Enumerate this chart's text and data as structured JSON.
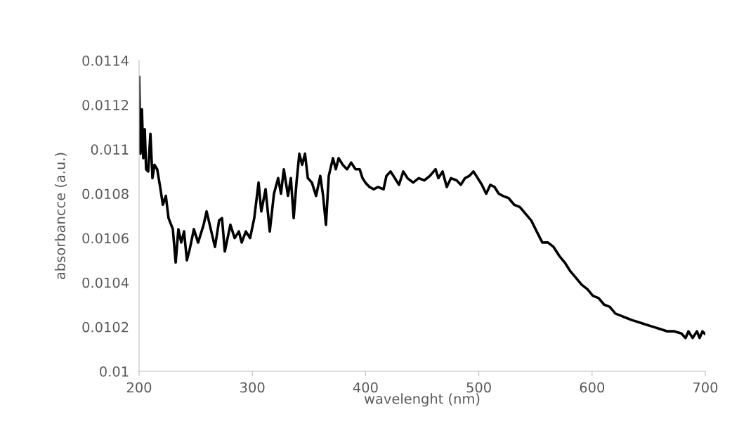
{
  "chart_data": {
    "type": "line",
    "xlabel": "wavelenght (nm)",
    "ylabel": "absorbancce (a.u.)",
    "xlim": [
      200,
      700
    ],
    "xticks": [
      200,
      300,
      400,
      500,
      600,
      700
    ],
    "ylim": [
      0.01,
      0.0114
    ],
    "yticks": [
      0.01,
      0.0102,
      0.0104,
      0.0106,
      0.0108,
      0.011,
      0.0112,
      0.0114
    ],
    "grid": false,
    "legend": false,
    "marker": "none",
    "line_style": "solid",
    "series": [
      {
        "color": "#000000",
        "x": [
          200,
          201.2,
          202.5,
          203.7,
          205,
          206.2,
          208,
          210,
          211.8,
          213.6,
          216,
          218.6,
          221,
          223.6,
          226,
          229.8,
          232.3,
          234.7,
          237.2,
          239.7,
          242.2,
          244.7,
          248.4,
          252.1,
          257,
          259.6,
          263.3,
          267,
          270.7,
          273.2,
          275.7,
          280.6,
          284.4,
          288.1,
          290.6,
          294.3,
          298,
          301.7,
          305.5,
          307.9,
          311.7,
          315.4,
          319.1,
          322.8,
          325.3,
          327.8,
          331.5,
          334,
          336.5,
          339,
          341.5,
          344,
          346.5,
          349,
          352.6,
          356.3,
          360,
          362.5,
          365,
          367.5,
          371.2,
          373.7,
          376.2,
          379.9,
          383.6,
          387.3,
          391.1,
          394.8,
          397.3,
          399.8,
          403.5,
          407.2,
          411,
          415.9,
          418.4,
          422.1,
          425.8,
          429.5,
          433.3,
          437,
          442,
          446.9,
          451.9,
          456.8,
          461.8,
          464.3,
          468,
          471.7,
          475.4,
          480.4,
          484.1,
          487.8,
          491.6,
          495.3,
          499,
          502.7,
          506.5,
          510.2,
          513.9,
          517.6,
          521.3,
          526.3,
          531.3,
          536.2,
          541.2,
          546.2,
          551.1,
          556.1,
          561,
          566,
          571,
          575.9,
          580.9,
          585.9,
          590.8,
          595.8,
          600.7,
          605.7,
          610.7,
          615.6,
          620.6,
          625.6,
          630.5,
          635.5,
          641.7,
          647.9,
          654.1,
          660.3,
          666.5,
          672.7,
          678.9,
          682.6,
          685.1,
          688.8,
          692.6,
          695,
          697.5,
          699.4
        ],
        "values": [
          0.011325,
          0.01098,
          0.01118,
          0.01096,
          0.01109,
          0.01091,
          0.0109,
          0.01107,
          0.01087,
          0.01093,
          0.01091,
          0.01083,
          0.01075,
          0.01079,
          0.01069,
          0.01064,
          0.01049,
          0.01064,
          0.01058,
          0.01063,
          0.0105,
          0.01055,
          0.01064,
          0.01058,
          0.01066,
          0.01072,
          0.01064,
          0.01056,
          0.01068,
          0.01069,
          0.01054,
          0.01066,
          0.0106,
          0.01063,
          0.01058,
          0.01063,
          0.0106,
          0.01069,
          0.01085,
          0.01072,
          0.01082,
          0.01063,
          0.0108,
          0.01087,
          0.0108,
          0.01091,
          0.01079,
          0.01087,
          0.01069,
          0.01085,
          0.01098,
          0.01093,
          0.01098,
          0.01087,
          0.01085,
          0.01079,
          0.01088,
          0.01079,
          0.01066,
          0.01088,
          0.01096,
          0.01091,
          0.01096,
          0.01093,
          0.01091,
          0.01094,
          0.01091,
          0.01091,
          0.01087,
          0.01085,
          0.01083,
          0.01082,
          0.01083,
          0.01082,
          0.01088,
          0.0109,
          0.01087,
          0.01084,
          0.0109,
          0.01087,
          0.01085,
          0.01087,
          0.01086,
          0.01088,
          0.01091,
          0.01087,
          0.0109,
          0.01083,
          0.01087,
          0.01086,
          0.01084,
          0.01087,
          0.01088,
          0.0109,
          0.01087,
          0.01084,
          0.0108,
          0.01084,
          0.01083,
          0.0108,
          0.01079,
          0.01078,
          0.01075,
          0.01074,
          0.01071,
          0.01068,
          0.01063,
          0.01058,
          0.01058,
          0.01056,
          0.01052,
          0.01049,
          0.01045,
          0.01042,
          0.01039,
          0.01037,
          0.01034,
          0.01033,
          0.0103,
          0.01029,
          0.01026,
          0.01025,
          0.01024,
          0.01023,
          0.01022,
          0.01021,
          0.0102,
          0.01019,
          0.01018,
          0.01018,
          0.01017,
          0.01015,
          0.01018,
          0.01015,
          0.01018,
          0.01015,
          0.01018,
          0.01017
        ]
      }
    ]
  }
}
